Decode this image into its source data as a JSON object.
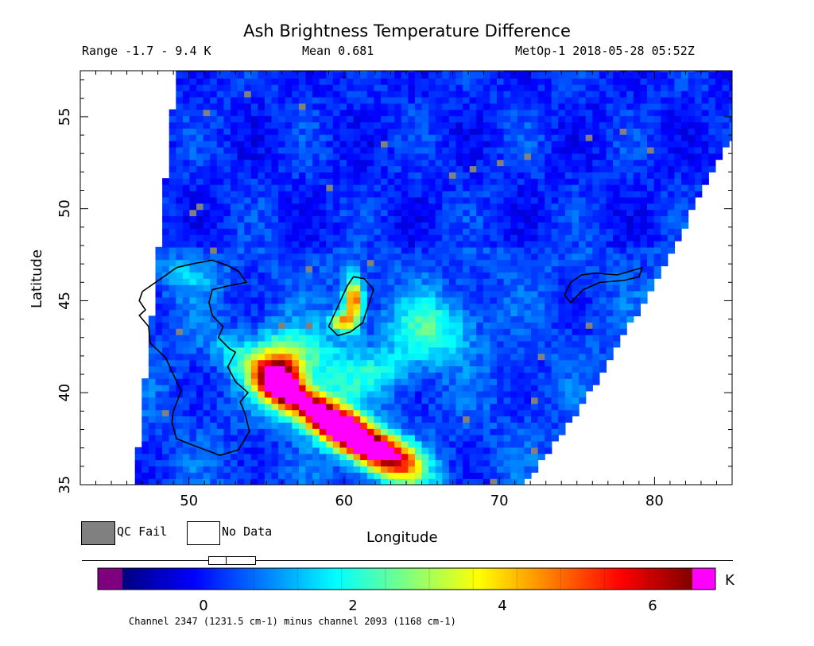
{
  "title": "Ash Brightness Temperature Difference",
  "subtitle": {
    "range": "Range -1.7 - 9.4 K",
    "mean": "Mean 0.681",
    "satellite": "MetOp-1 2018-05-28 05:52Z"
  },
  "map": {
    "xlabel": "Longitude",
    "ylabel": "Latitude",
    "xlim": [
      43,
      85
    ],
    "ylim": [
      35,
      57.5
    ],
    "x_ticks": [
      50,
      60,
      70,
      80
    ],
    "y_ticks": [
      35,
      40,
      45,
      50,
      55
    ],
    "swath": {
      "west_edge_lon_at_lat35": 46.5,
      "west_edge_lon_at_lat57.5": 49.2
    },
    "features": [
      "Caspian Sea coastline",
      "Aral Sea coastline",
      "Lake Balkhash coastline"
    ]
  },
  "legend": {
    "qc_fail": {
      "label": "QC Fail",
      "color": "#808080"
    },
    "no_data": {
      "label": "No Data",
      "color": "#ffffff"
    }
  },
  "colorbar": {
    "unit": "K",
    "ticks": [
      "0",
      "2",
      "4",
      "6"
    ],
    "tick_values": [
      0,
      2,
      4,
      6
    ],
    "min": -1.1,
    "max": 6.6,
    "under_color": "#7f007f",
    "over_color": "#ff00ff",
    "colors": [
      "#00007f",
      "#0000ff",
      "#007fff",
      "#00ffff",
      "#7fff7f",
      "#ffff00",
      "#ff7f00",
      "#ff0000",
      "#7f0000"
    ],
    "caption": "Channel 2347 (1231.5 cm-1) minus channel 2093 (1168 cm-1)"
  }
}
